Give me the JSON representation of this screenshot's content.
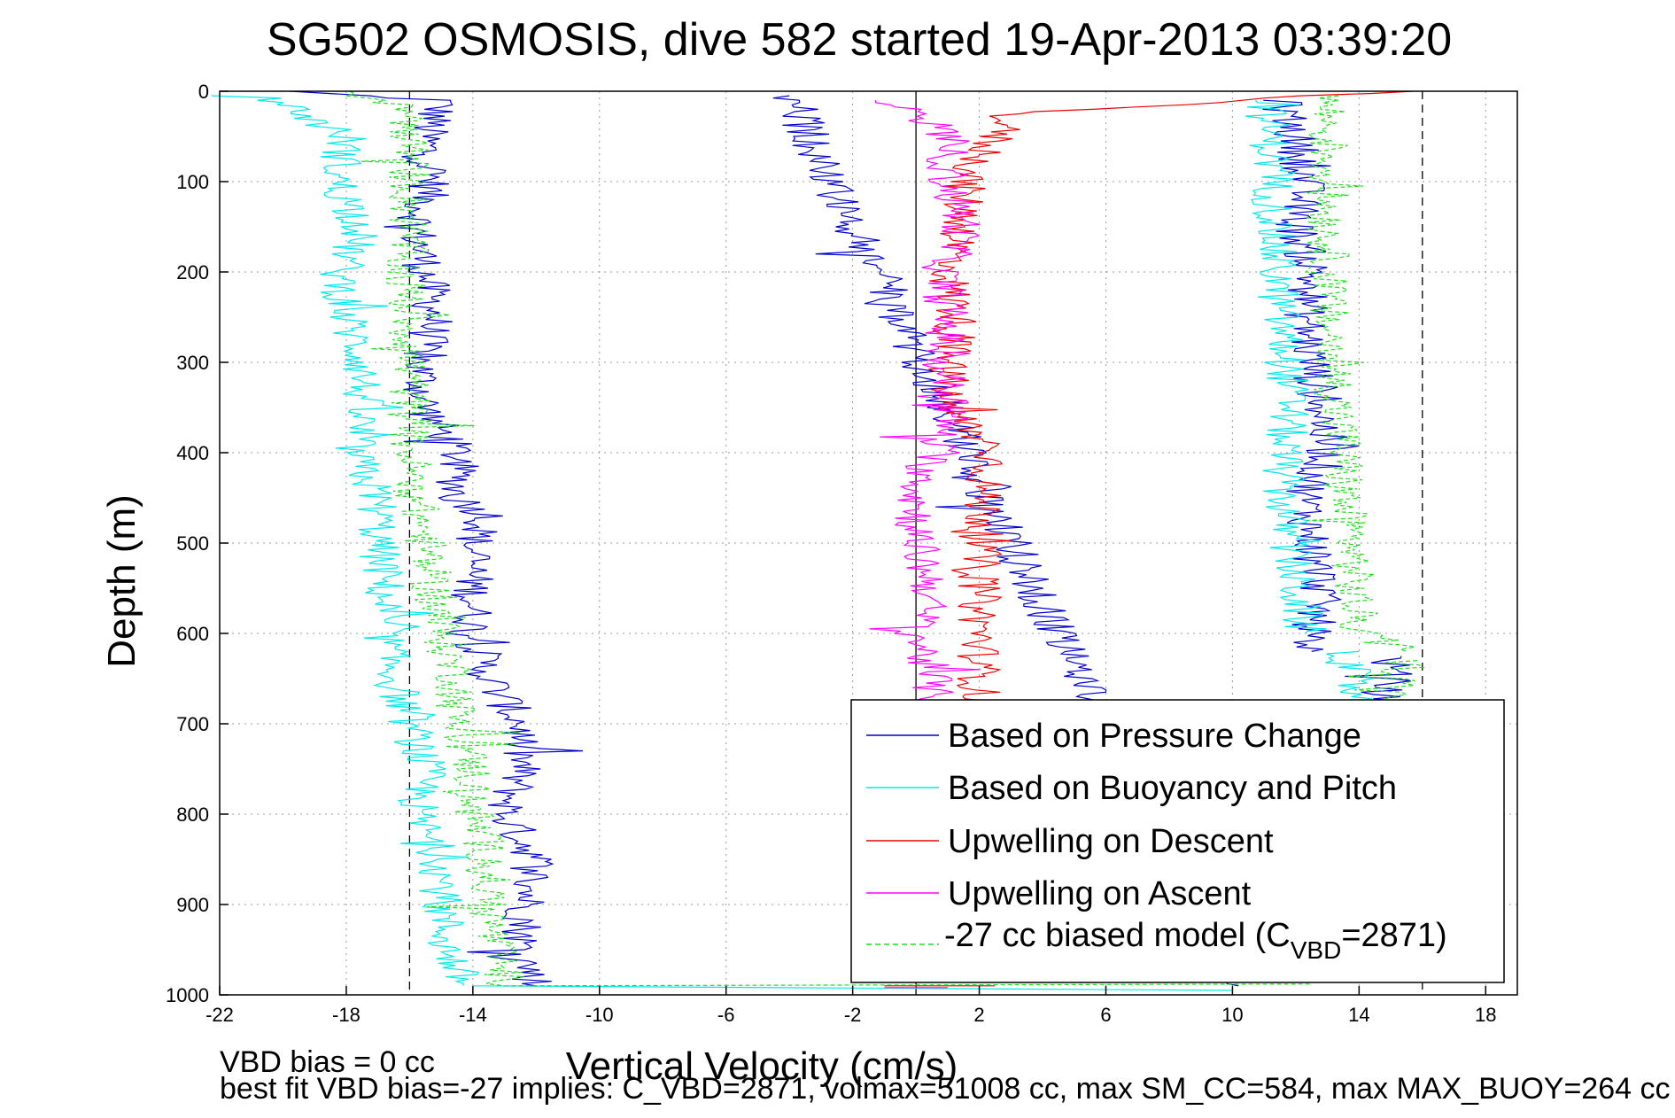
{
  "chart_data": {
    "type": "line",
    "title": "SG502 OSMOSIS, dive 582 started 19-Apr-2013 03:39:20",
    "xlabel": "Vertical Velocity (cm/s)",
    "ylabel": "Depth (m)",
    "xlim": [
      -22,
      19
    ],
    "ylim": [
      0,
      1000
    ],
    "y_reversed": true,
    "xticks": [
      -22,
      -18,
      -14,
      -10,
      -6,
      -2,
      2,
      6,
      10,
      14,
      18
    ],
    "yticks": [
      0,
      100,
      200,
      300,
      400,
      500,
      600,
      700,
      800,
      900,
      1000
    ],
    "grid": true,
    "legend_position": "bottom-right",
    "reference_lines": [
      {
        "x": -16,
        "style": "dashed"
      },
      {
        "x": 0,
        "style": "solid"
      },
      {
        "x": 16,
        "style": "dashed"
      }
    ],
    "series": [
      {
        "name": "Based on Pressure Change",
        "color": "#0000cc",
        "segments": [
          {
            "depth": [
              0,
              10,
              50,
              100,
              150,
              200,
              250,
              300,
              350,
              400,
              450,
              470,
              500,
              550,
              600,
              650,
              700,
              750,
              800,
              850,
              900,
              950,
              990
            ],
            "velocity": [
              -20,
              -15,
              -15.5,
              -15.3,
              -15.8,
              -15.5,
              -15.2,
              -15.7,
              -15.5,
              -14.5,
              -14.5,
              -13.5,
              -14,
              -14,
              -14,
              -13.5,
              -12.5,
              -12.5,
              -13,
              -12,
              -12.3,
              -12.5,
              -12
            ]
          },
          {
            "depth": [
              990,
              5
            ],
            "velocity": [
              10,
              -4
            ]
          },
          {
            "depth": [
              10,
              50,
              100,
              150,
              200,
              250,
              300,
              350,
              400,
              450,
              500,
              550,
              600,
              620
            ],
            "velocity": [
              11.5,
              12,
              12.3,
              12,
              12.5,
              12.3,
              12.5,
              12.8,
              13,
              12.3,
              12.5,
              12.8,
              12.5,
              12.5
            ]
          },
          {
            "depth": [
              625,
              650,
              680
            ],
            "velocity": [
              15,
              15,
              14.5
            ]
          }
        ]
      },
      {
        "name": "Based on Buoyancy and Pitch",
        "color": "#00e8e8",
        "segments": [
          {
            "depth": [
              5,
              50,
              100,
              150,
              200,
              250,
              300,
              350,
              400,
              450,
              500,
              550,
              600,
              650,
              700,
              750,
              800,
              850,
              900,
              950,
              990
            ],
            "velocity": [
              -20.5,
              -18,
              -18.3,
              -17.5,
              -18.2,
              -18,
              -17.5,
              -17.5,
              -17.8,
              -17,
              -17,
              -16.8,
              -16.8,
              -16.5,
              -16,
              -15.5,
              -15.8,
              -15,
              -15,
              -14.8,
              -14.3
            ]
          },
          {
            "depth": [
              990,
              995
            ],
            "velocity": [
              -14,
              10
            ]
          },
          {
            "depth": [
              10,
              50,
              100,
              150,
              200,
              250,
              300,
              350,
              400,
              450,
              500,
              550,
              600
            ],
            "velocity": [
              11,
              11.2,
              11.3,
              11.3,
              11.4,
              11.5,
              11.7,
              11.8,
              11.6,
              11.6,
              11.8,
              12,
              12.3
            ]
          },
          {
            "depth": [
              620,
              680
            ],
            "velocity": [
              13.5,
              14
            ]
          }
        ]
      },
      {
        "name": "Upwelling on Descent",
        "color": "#ee0000",
        "segments": [
          {
            "depth": [
              0,
              25,
              50,
              100,
              150,
              200,
              250,
              300,
              350,
              400,
              450,
              470,
              500,
              550,
              600,
              650,
              680
            ],
            "velocity": [
              15,
              3,
              2.5,
              1.5,
              1.5,
              1,
              1.3,
              1,
              1,
              2.5,
              2,
              2.2,
              2,
              2,
              2,
              2,
              2
            ]
          },
          {
            "depth": [
              990,
              990
            ],
            "velocity": [
              -1,
              2.5
            ]
          }
        ]
      },
      {
        "name": "Upwelling on Ascent",
        "color": "#ff00ff",
        "segments": [
          {
            "depth": [
              10,
              50,
              100,
              150,
              200,
              250,
              300,
              350,
              400,
              450,
              500,
              550,
              600,
              650,
              680
            ],
            "velocity": [
              -1,
              1,
              1,
              1.5,
              0.8,
              1,
              0.8,
              1.2,
              0.5,
              0,
              0,
              0.5,
              0,
              0.5,
              0.5
            ]
          },
          {
            "depth": [
              992,
              992
            ],
            "velocity": [
              -1,
              1
            ]
          }
        ]
      },
      {
        "name": "-27 cc biased model (C_VBD=2871)",
        "color": "#22dd22",
        "style": "dashed",
        "segments": [
          {
            "depth": [
              0,
              20,
              50,
              100,
              150,
              200,
              250,
              300,
              350,
              400,
              450,
              500,
              550,
              600,
              650,
              700,
              750,
              800,
              850,
              900,
              950,
              990
            ],
            "velocity": [
              -18,
              -16,
              -16,
              -16,
              -16,
              -16.2,
              -16,
              -16,
              -16,
              -16,
              -15.8,
              -15.5,
              -15.3,
              -15,
              -14.5,
              -14.5,
              -14,
              -14,
              -13.5,
              -13.5,
              -13.3,
              -13
            ]
          },
          {
            "depth": [
              990,
              988
            ],
            "velocity": [
              -13,
              12.5
            ]
          },
          {
            "depth": [
              5,
              50,
              100,
              150,
              200,
              250,
              300,
              350,
              400,
              450,
              500,
              550,
              600,
              620
            ],
            "velocity": [
              13,
              13,
              13,
              13,
              13,
              13,
              13.2,
              13.3,
              13.5,
              13.5,
              13.8,
              13.8,
              14,
              15.5
            ]
          },
          {
            "depth": [
              630,
              680
            ],
            "velocity": [
              15.5,
              15
            ]
          }
        ]
      }
    ]
  },
  "legend": {
    "entries": [
      "Based on Pressure Change",
      "Based on Buoyancy and Pitch",
      "Upwelling on Descent",
      "Upwelling on Ascent"
    ],
    "model_prefix": "-27 cc biased model (C",
    "model_sub": "VBD",
    "model_suffix": "=2871)"
  },
  "footer": {
    "line1": "VBD bias = 0 cc",
    "line2": "best fit VBD bias=-27 implies: C_VBD=2871, volmax=51008 cc, max SM_CC=584, max MAX_BUOY=264 cc"
  }
}
